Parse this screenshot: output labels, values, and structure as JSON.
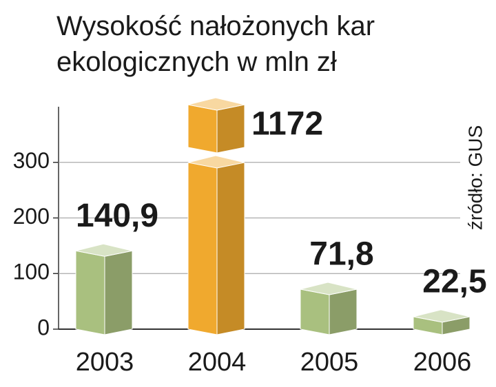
{
  "chart_data": {
    "type": "bar",
    "title": "Wysokość nałożonych kar ekologicznych w mln zł",
    "source": "źródło: GUS",
    "categories": [
      "2003",
      "2004",
      "2005",
      "2006"
    ],
    "values": [
      140.9,
      1172,
      71.8,
      22.5
    ],
    "value_labels": [
      "140,9",
      "1172",
      "71,8",
      "22,5"
    ],
    "colors": [
      "#a9c07f",
      "#f0a92e",
      "#a9c07f",
      "#a9c07f"
    ],
    "value_label_colors": [
      "#1a1a1a",
      "#c41230",
      "#1a1a1a",
      "#1a1a1a"
    ],
    "ylim": [
      0,
      400
    ],
    "yticks": [
      0,
      100,
      200,
      300
    ],
    "grid": true,
    "axis_break": true
  }
}
